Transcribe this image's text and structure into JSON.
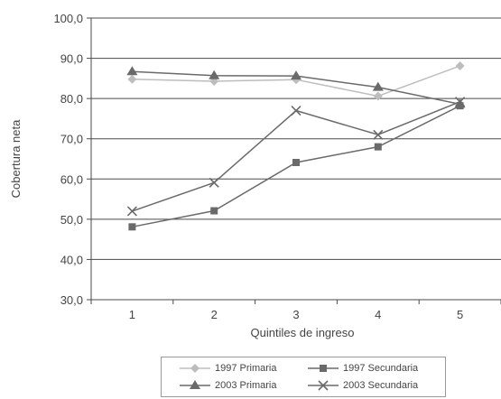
{
  "chart_data": {
    "type": "line",
    "xlabel": "Quintiles de ingreso",
    "ylabel": "Cobertura neta",
    "categories": [
      "1",
      "2",
      "3",
      "4",
      "5"
    ],
    "ylim": [
      30,
      100
    ],
    "yticks": [
      "30,0",
      "40,0",
      "50,0",
      "60,0",
      "70,0",
      "80,0",
      "90,0",
      "100,0"
    ],
    "ytick_values": [
      30,
      40,
      50,
      60,
      70,
      80,
      90,
      100
    ],
    "grid": "horizontal",
    "legend_position": "bottom",
    "series": [
      {
        "name": "1997 Primaria",
        "values": [
          84.8,
          84.3,
          84.7,
          80.6,
          88.1
        ],
        "color": "#bdbdbd",
        "marker": "diamond"
      },
      {
        "name": "1997 Secundaria",
        "values": [
          48.1,
          52.1,
          64.1,
          68.0,
          78.2
        ],
        "color": "#6a6a6a",
        "marker": "square"
      },
      {
        "name": "2003 Primaria",
        "values": [
          86.7,
          85.7,
          85.6,
          82.8,
          78.6
        ],
        "color": "#6a6a6a",
        "marker": "triangle"
      },
      {
        "name": "2003 Secundaria",
        "values": [
          52.0,
          59.1,
          77.0,
          71.0,
          79.2
        ],
        "color": "#6a6a6a",
        "marker": "x"
      }
    ]
  }
}
